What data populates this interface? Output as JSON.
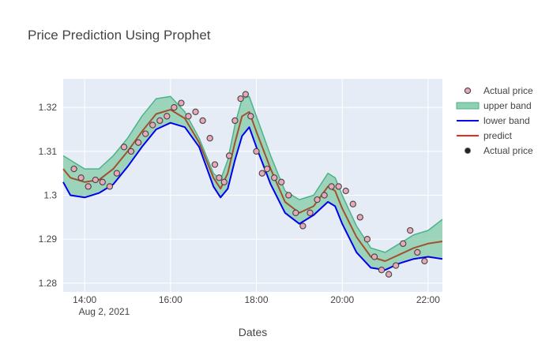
{
  "chart_data": {
    "type": "line",
    "title": "Price Prediction Using Prophet",
    "xlabel": "Dates",
    "ylabel": "",
    "x_start_label": "Aug 2, 2021",
    "x_range": [
      "2021-08-02 13:30",
      "2021-08-02 22:20"
    ],
    "ylim": [
      1.278,
      1.3265
    ],
    "x_ticks": [
      "14:00",
      "16:00",
      "18:00",
      "20:00",
      "22:00"
    ],
    "y_ticks": [
      "1.28",
      "1.29",
      "1.3",
      "1.31",
      "1.32"
    ],
    "legend_position": "right",
    "grid": true,
    "colors": {
      "plot_bg": "#e5ecf6",
      "grid": "#ffffff",
      "band_fill": "#8fd0b0",
      "upper_band": "#4cb38a",
      "lower_band": "#0000ee",
      "predict": "#e8291c",
      "trend": "#a0522d",
      "marker_fill": "#e8a8b8",
      "marker_edge": "#444444"
    },
    "series": [
      {
        "name": "upper band",
        "x": [
          "13:30",
          "13:40",
          "14:00",
          "14:20",
          "14:40",
          "15:00",
          "15:20",
          "15:40",
          "16:00",
          "16:20",
          "16:40",
          "17:00",
          "17:10",
          "17:20",
          "17:30",
          "17:40",
          "17:50",
          "18:00",
          "18:20",
          "18:40",
          "19:00",
          "19:20",
          "19:40",
          "19:50",
          "20:00",
          "20:20",
          "20:40",
          "21:00",
          "21:20",
          "21:40",
          "22:00",
          "22:20"
        ],
        "y": [
          1.309,
          1.308,
          1.306,
          1.306,
          1.309,
          1.313,
          1.318,
          1.322,
          1.3225,
          1.319,
          1.313,
          1.305,
          1.3035,
          1.308,
          1.316,
          1.322,
          1.3225,
          1.318,
          1.309,
          1.301,
          1.299,
          1.3,
          1.305,
          1.304,
          1.3,
          1.293,
          1.288,
          1.287,
          1.289,
          1.291,
          1.292,
          1.2945
        ]
      },
      {
        "name": "lower band",
        "x": [
          "13:30",
          "13:40",
          "14:00",
          "14:20",
          "14:40",
          "15:00",
          "15:20",
          "15:40",
          "16:00",
          "16:20",
          "16:40",
          "17:00",
          "17:10",
          "17:20",
          "17:30",
          "17:40",
          "17:50",
          "18:00",
          "18:20",
          "18:40",
          "19:00",
          "19:20",
          "19:40",
          "19:50",
          "20:00",
          "20:20",
          "20:40",
          "21:00",
          "21:20",
          "21:40",
          "22:00",
          "22:20"
        ],
        "y": [
          1.303,
          1.3,
          1.2995,
          1.3005,
          1.3025,
          1.3065,
          1.311,
          1.315,
          1.3165,
          1.3155,
          1.311,
          1.302,
          1.2995,
          1.3015,
          1.308,
          1.3135,
          1.3155,
          1.311,
          1.3025,
          1.296,
          1.2935,
          1.2955,
          1.2985,
          1.2975,
          1.2935,
          1.287,
          1.2835,
          1.283,
          1.2845,
          1.2855,
          1.286,
          1.2855
        ]
      },
      {
        "name": "predict",
        "x": [
          "13:30",
          "13:40",
          "14:00",
          "14:20",
          "14:40",
          "15:00",
          "15:20",
          "15:40",
          "16:00",
          "16:20",
          "16:40",
          "17:00",
          "17:10",
          "17:20",
          "17:30",
          "17:40",
          "17:50",
          "18:00",
          "18:20",
          "18:40",
          "19:00",
          "19:20",
          "19:40",
          "19:50",
          "20:00",
          "20:20",
          "20:40",
          "21:00",
          "21:20",
          "21:40",
          "22:00",
          "22:20"
        ],
        "y": [
          1.306,
          1.304,
          1.303,
          1.3035,
          1.306,
          1.31,
          1.3145,
          1.3185,
          1.3195,
          1.3175,
          1.312,
          1.304,
          1.3015,
          1.305,
          1.312,
          1.318,
          1.319,
          1.3145,
          1.306,
          1.2985,
          1.296,
          1.2975,
          1.302,
          1.301,
          1.297,
          1.2905,
          1.286,
          1.285,
          1.2865,
          1.288,
          1.289,
          1.2895
        ]
      },
      {
        "name": "Actual price",
        "x": [
          "13:45",
          "13:55",
          "14:05",
          "14:15",
          "14:25",
          "14:35",
          "14:45",
          "14:55",
          "15:05",
          "15:15",
          "15:25",
          "15:35",
          "15:45",
          "15:55",
          "16:05",
          "16:15",
          "16:25",
          "16:35",
          "16:45",
          "16:55",
          "17:02",
          "17:08",
          "17:15",
          "17:22",
          "17:30",
          "17:38",
          "17:45",
          "17:52",
          "18:00",
          "18:08",
          "18:15",
          "18:25",
          "18:35",
          "18:45",
          "18:55",
          "19:05",
          "19:15",
          "19:25",
          "19:35",
          "19:45",
          "19:55",
          "20:05",
          "20:15",
          "20:25",
          "20:35",
          "20:45",
          "20:55",
          "21:05",
          "21:15",
          "21:25",
          "21:35",
          "21:45",
          "21:55"
        ],
        "y": [
          1.306,
          1.304,
          1.302,
          1.3035,
          1.303,
          1.302,
          1.305,
          1.311,
          1.31,
          1.312,
          1.314,
          1.316,
          1.317,
          1.318,
          1.32,
          1.321,
          1.318,
          1.319,
          1.317,
          1.313,
          1.307,
          1.304,
          1.303,
          1.309,
          1.317,
          1.322,
          1.323,
          1.318,
          1.31,
          1.305,
          1.306,
          1.304,
          1.303,
          1.3,
          1.296,
          1.293,
          1.296,
          1.299,
          1.3,
          1.302,
          1.302,
          1.301,
          1.298,
          1.295,
          1.29,
          1.286,
          1.283,
          1.282,
          1.284,
          1.289,
          1.292,
          1.287,
          1.285
        ]
      }
    ],
    "legend": [
      {
        "label": "Actual price",
        "kind": "marker-pink"
      },
      {
        "label": "upper band",
        "kind": "band"
      },
      {
        "label": "lower band",
        "kind": "line-blue"
      },
      {
        "label": "predict",
        "kind": "line-red"
      },
      {
        "label": "Actual price",
        "kind": "marker-black"
      }
    ]
  }
}
